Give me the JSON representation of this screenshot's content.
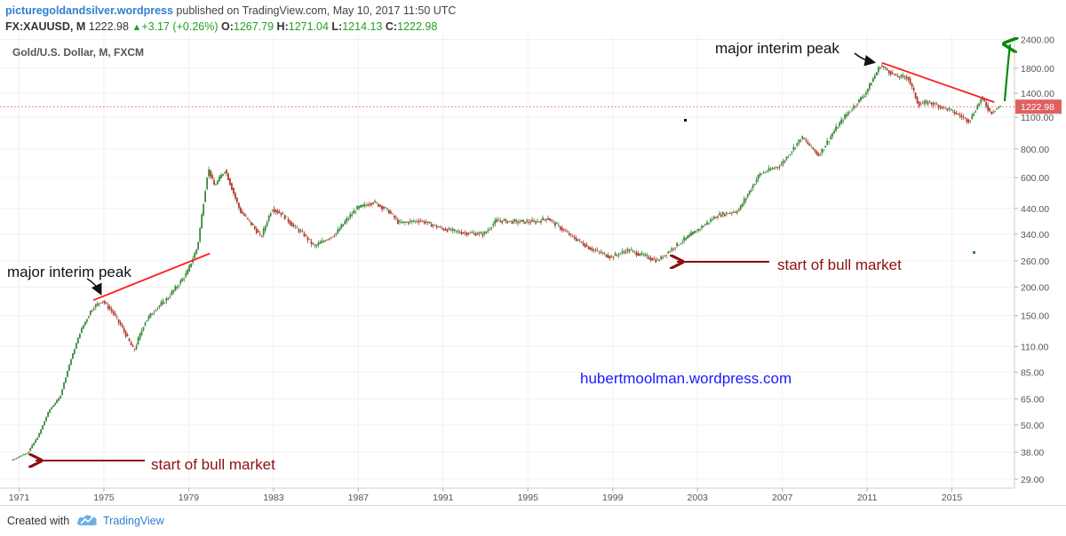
{
  "header": {
    "publisher": "picturegoldandsilver.wordpress",
    "published_text": " published on TradingView.com, May 10, 2017 11:50 UTC",
    "symbol": "FX:XAUUSD, M",
    "last": "1222.98",
    "change": "+3.17 (+0.26%)",
    "o_label": "O:",
    "open": "1267.79",
    "h_label": "H:",
    "high": "1271.04",
    "l_label": "L:",
    "low": "1214.13",
    "c_label": "C:",
    "close": "1222.98"
  },
  "chart_data": {
    "type": "candlestick",
    "title": "Gold/U.S. Dollar, M, FXCM",
    "y_scale": "log",
    "ylim": [
      27,
      2500
    ],
    "y_ticks": [
      "2400.00",
      "1800.00",
      "1400.00",
      "1100.00",
      "800.00",
      "600.00",
      "440.00",
      "340.00",
      "260.00",
      "200.00",
      "150.00",
      "110.00",
      "85.00",
      "65.00",
      "50.00",
      "38.00",
      "29.00"
    ],
    "x_ticks": [
      "1971",
      "1975",
      "1979",
      "1983",
      "1987",
      "1991",
      "1995",
      "1999",
      "2003",
      "2007",
      "2011",
      "2015"
    ],
    "last_price_label": "1222.98",
    "price_path": [
      {
        "x": 1970.7,
        "y": 35
      },
      {
        "x": 1971.5,
        "y": 38
      },
      {
        "x": 1972.0,
        "y": 45
      },
      {
        "x": 1972.5,
        "y": 58
      },
      {
        "x": 1973.0,
        "y": 66
      },
      {
        "x": 1973.5,
        "y": 95
      },
      {
        "x": 1974.0,
        "y": 130
      },
      {
        "x": 1974.5,
        "y": 160
      },
      {
        "x": 1975.0,
        "y": 175
      },
      {
        "x": 1975.5,
        "y": 155
      },
      {
        "x": 1976.0,
        "y": 130
      },
      {
        "x": 1976.5,
        "y": 105
      },
      {
        "x": 1977.0,
        "y": 140
      },
      {
        "x": 1977.5,
        "y": 160
      },
      {
        "x": 1978.0,
        "y": 175
      },
      {
        "x": 1978.5,
        "y": 200
      },
      {
        "x": 1979.0,
        "y": 230
      },
      {
        "x": 1979.5,
        "y": 300
      },
      {
        "x": 1980.0,
        "y": 660
      },
      {
        "x": 1980.3,
        "y": 550
      },
      {
        "x": 1980.8,
        "y": 650
      },
      {
        "x": 1981.5,
        "y": 430
      },
      {
        "x": 1982.0,
        "y": 380
      },
      {
        "x": 1982.5,
        "y": 330
      },
      {
        "x": 1983.0,
        "y": 440
      },
      {
        "x": 1983.5,
        "y": 415
      },
      {
        "x": 1984.0,
        "y": 370
      },
      {
        "x": 1984.5,
        "y": 340
      },
      {
        "x": 1985.0,
        "y": 300
      },
      {
        "x": 1985.5,
        "y": 320
      },
      {
        "x": 1986.0,
        "y": 340
      },
      {
        "x": 1986.5,
        "y": 390
      },
      {
        "x": 1987.0,
        "y": 440
      },
      {
        "x": 1987.8,
        "y": 470
      },
      {
        "x": 1988.5,
        "y": 430
      },
      {
        "x": 1989.0,
        "y": 380
      },
      {
        "x": 1990.0,
        "y": 390
      },
      {
        "x": 1991.0,
        "y": 360
      },
      {
        "x": 1992.0,
        "y": 345
      },
      {
        "x": 1993.0,
        "y": 340
      },
      {
        "x": 1993.6,
        "y": 390
      },
      {
        "x": 1994.5,
        "y": 385
      },
      {
        "x": 1995.5,
        "y": 385
      },
      {
        "x": 1996.0,
        "y": 400
      },
      {
        "x": 1997.0,
        "y": 340
      },
      {
        "x": 1998.0,
        "y": 295
      },
      {
        "x": 1999.0,
        "y": 270
      },
      {
        "x": 1999.8,
        "y": 290
      },
      {
        "x": 2000.5,
        "y": 275
      },
      {
        "x": 2001.2,
        "y": 260
      },
      {
        "x": 2002.0,
        "y": 300
      },
      {
        "x": 2003.0,
        "y": 350
      },
      {
        "x": 2004.0,
        "y": 410
      },
      {
        "x": 2005.0,
        "y": 430
      },
      {
        "x": 2006.0,
        "y": 620
      },
      {
        "x": 2007.0,
        "y": 680
      },
      {
        "x": 2008.0,
        "y": 900
      },
      {
        "x": 2008.8,
        "y": 750
      },
      {
        "x": 2009.5,
        "y": 950
      },
      {
        "x": 2010.0,
        "y": 1100
      },
      {
        "x": 2011.0,
        "y": 1400
      },
      {
        "x": 2011.7,
        "y": 1850
      },
      {
        "x": 2012.5,
        "y": 1650
      },
      {
        "x": 2013.0,
        "y": 1650
      },
      {
        "x": 2013.5,
        "y": 1250
      },
      {
        "x": 2014.0,
        "y": 1280
      },
      {
        "x": 2015.0,
        "y": 1180
      },
      {
        "x": 2015.9,
        "y": 1060
      },
      {
        "x": 2016.5,
        "y": 1340
      },
      {
        "x": 2016.9,
        "y": 1150
      },
      {
        "x": 2017.3,
        "y": 1223
      }
    ],
    "trendlines": [
      {
        "from": {
          "x": 1974.5,
          "y": 175
        },
        "to": {
          "x": 1980.0,
          "y": 280
        }
      },
      {
        "from": {
          "x": 2011.7,
          "y": 1900
        },
        "to": {
          "x": 2017.0,
          "y": 1280
        }
      }
    ],
    "annotations": {
      "peak_1975": "major interim peak",
      "peak_2011": "major interim peak",
      "bull_1971": "start of bull market",
      "bull_2001": "start of bull market"
    },
    "watermark": "hubertmoolman.wordpress.com"
  },
  "footer": {
    "created_with": "Created with",
    "brand": "TradingView"
  },
  "colors": {
    "up": "#3a8a3a",
    "down": "#b03a2e",
    "trendline": "#ff2020",
    "bull_arrow": "#8b0f0f",
    "green_arrow": "#0a8a0a",
    "price_line": "#e06060",
    "price_tag": "#e06060"
  }
}
